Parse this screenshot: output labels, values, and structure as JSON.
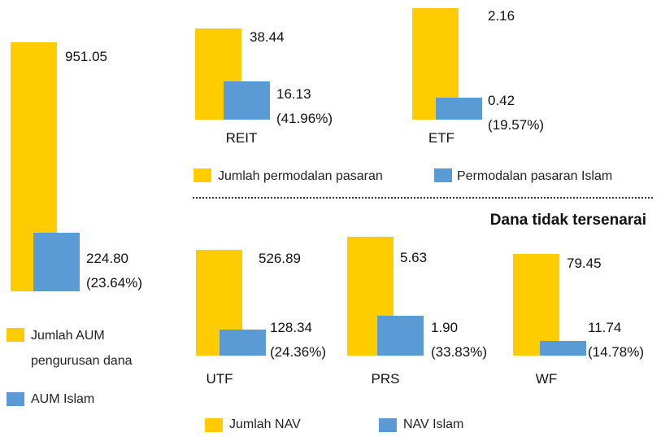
{
  "chart_data": [
    {
      "type": "bar",
      "categories": [
        null
      ],
      "series": [
        {
          "name": "Jumlah AUM pengurusan dana",
          "color": "#ffcc00",
          "values": [
            951.05
          ],
          "value_labels": [
            "951.05"
          ]
        },
        {
          "name": "AUM Islam",
          "color": "#5b9bd5",
          "values": [
            224.8
          ],
          "value_labels": [
            "224.80"
          ],
          "share_labels": [
            "(23.64%)"
          ]
        }
      ]
    },
    {
      "type": "bar",
      "categories": [
        "REIT",
        "ETF"
      ],
      "series": [
        {
          "name": "Jumlah permodalan pasaran",
          "color": "#ffcc00",
          "values": [
            38.44,
            2.16
          ],
          "value_labels": [
            "38.44",
            "2.16"
          ]
        },
        {
          "name": "Permodalan pasaran Islam",
          "color": "#5b9bd5",
          "values": [
            16.13,
            0.42
          ],
          "value_labels": [
            "16.13",
            "0.42"
          ],
          "share_labels": [
            "(41.96%)",
            "(19.57%)"
          ]
        }
      ]
    },
    {
      "type": "bar",
      "title": "Dana tidak tersenarai",
      "categories": [
        "UTF",
        "PRS",
        "WF"
      ],
      "series": [
        {
          "name": "Jumlah NAV",
          "color": "#ffcc00",
          "values": [
            526.89,
            5.63,
            79.45
          ],
          "value_labels": [
            "526.89",
            "5.63",
            "79.45"
          ]
        },
        {
          "name": "NAV Islam",
          "color": "#5b9bd5",
          "values": [
            128.34,
            1.9,
            11.74
          ],
          "value_labels": [
            "128.34",
            "1.90",
            "11.74"
          ],
          "share_labels": [
            "(24.36%)",
            "(33.83%)",
            "(14.78%)"
          ]
        }
      ]
    }
  ]
}
